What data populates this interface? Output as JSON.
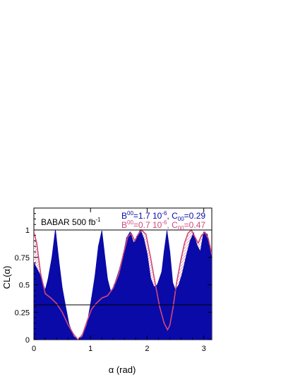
{
  "chart_data": {
    "type": "area",
    "xlabel": "α (rad)",
    "ylabel": "CL(α)",
    "xlim": [
      0,
      3.1416
    ],
    "ylim": [
      0,
      1.2
    ],
    "x_ticks": [
      0,
      1,
      2,
      3
    ],
    "y_ticks": [
      0,
      0.25,
      0.5,
      0.75,
      1
    ],
    "y_tick_labels": [
      "0",
      "0.25",
      "0.5",
      "0.75",
      "1"
    ],
    "grid": false,
    "annotation": {
      "text": "BABAR 500 fb",
      "superscript": "-1"
    },
    "reference_line_y": 0.317,
    "reference_line_y_1": 1.0,
    "legend_position": "top-right",
    "colors": {
      "series_blue": "#0a0aa8",
      "series_pink": "#d1487a",
      "hatch": "#e8a0b8"
    },
    "series": [
      {
        "legend": {
          "B_sup": "00",
          "B_text": "=1.7 10",
          "B_exp": "-6",
          "sep": ", C",
          "C_sub": "00",
          "C_text": "=0.29"
        },
        "x": [
          0,
          0.1,
          0.2,
          0.25,
          0.32,
          0.38,
          0.44,
          0.5,
          0.56,
          0.62,
          0.7,
          0.78,
          0.86,
          0.94,
          1.02,
          1.08,
          1.14,
          1.2,
          1.26,
          1.3,
          1.36,
          1.42,
          1.5,
          1.58,
          1.64,
          1.7,
          1.76,
          1.82,
          1.88,
          1.94,
          2.0,
          2.06,
          2.12,
          2.18,
          2.26,
          2.3,
          2.35,
          2.4,
          2.45,
          2.5,
          2.56,
          2.62,
          2.7,
          2.76,
          2.82,
          2.88,
          2.94,
          3.0,
          3.06,
          3.1,
          3.14
        ],
        "y": [
          0.7,
          0.6,
          0.45,
          0.55,
          0.75,
          1.0,
          0.72,
          0.47,
          0.3,
          0.14,
          0.03,
          0.0,
          0.03,
          0.14,
          0.38,
          0.58,
          0.85,
          0.99,
          0.72,
          0.55,
          0.43,
          0.5,
          0.62,
          0.78,
          0.93,
          0.98,
          0.88,
          0.94,
          1.0,
          0.92,
          0.78,
          0.56,
          0.48,
          0.5,
          0.62,
          0.8,
          0.99,
          0.8,
          0.52,
          0.45,
          0.5,
          0.6,
          0.78,
          0.9,
          0.97,
          0.86,
          0.8,
          0.98,
          0.96,
          0.85,
          0.75
        ]
      },
      {
        "legend": {
          "B_sup": "00",
          "B_text": "=0.7 10",
          "B_exp": "-6",
          "sep": ", C",
          "C_sub": "00",
          "C_text": "=0.47"
        },
        "x": [
          0,
          0.05,
          0.12,
          0.2,
          0.3,
          0.4,
          0.5,
          0.6,
          0.7,
          0.78,
          0.86,
          0.94,
          1.02,
          1.1,
          1.2,
          1.3,
          1.4,
          1.5,
          1.58,
          1.66,
          1.72,
          1.78,
          1.84,
          1.9,
          1.98,
          2.06,
          2.14,
          2.22,
          2.3,
          2.36,
          2.4,
          2.46,
          2.52,
          2.6,
          2.66,
          2.72,
          2.78,
          2.84,
          2.9,
          2.96,
          3.02,
          3.08,
          3.14
        ],
        "y": [
          0.98,
          0.88,
          0.6,
          0.42,
          0.38,
          0.33,
          0.25,
          0.14,
          0.05,
          0.0,
          0.05,
          0.17,
          0.28,
          0.33,
          0.38,
          0.4,
          0.47,
          0.6,
          0.78,
          0.94,
          0.97,
          0.9,
          0.96,
          1.0,
          0.96,
          0.75,
          0.52,
          0.3,
          0.15,
          0.09,
          0.13,
          0.3,
          0.52,
          0.74,
          0.88,
          0.97,
          1.0,
          0.94,
          0.88,
          0.95,
          0.98,
          0.92,
          0.78
        ]
      }
    ]
  }
}
